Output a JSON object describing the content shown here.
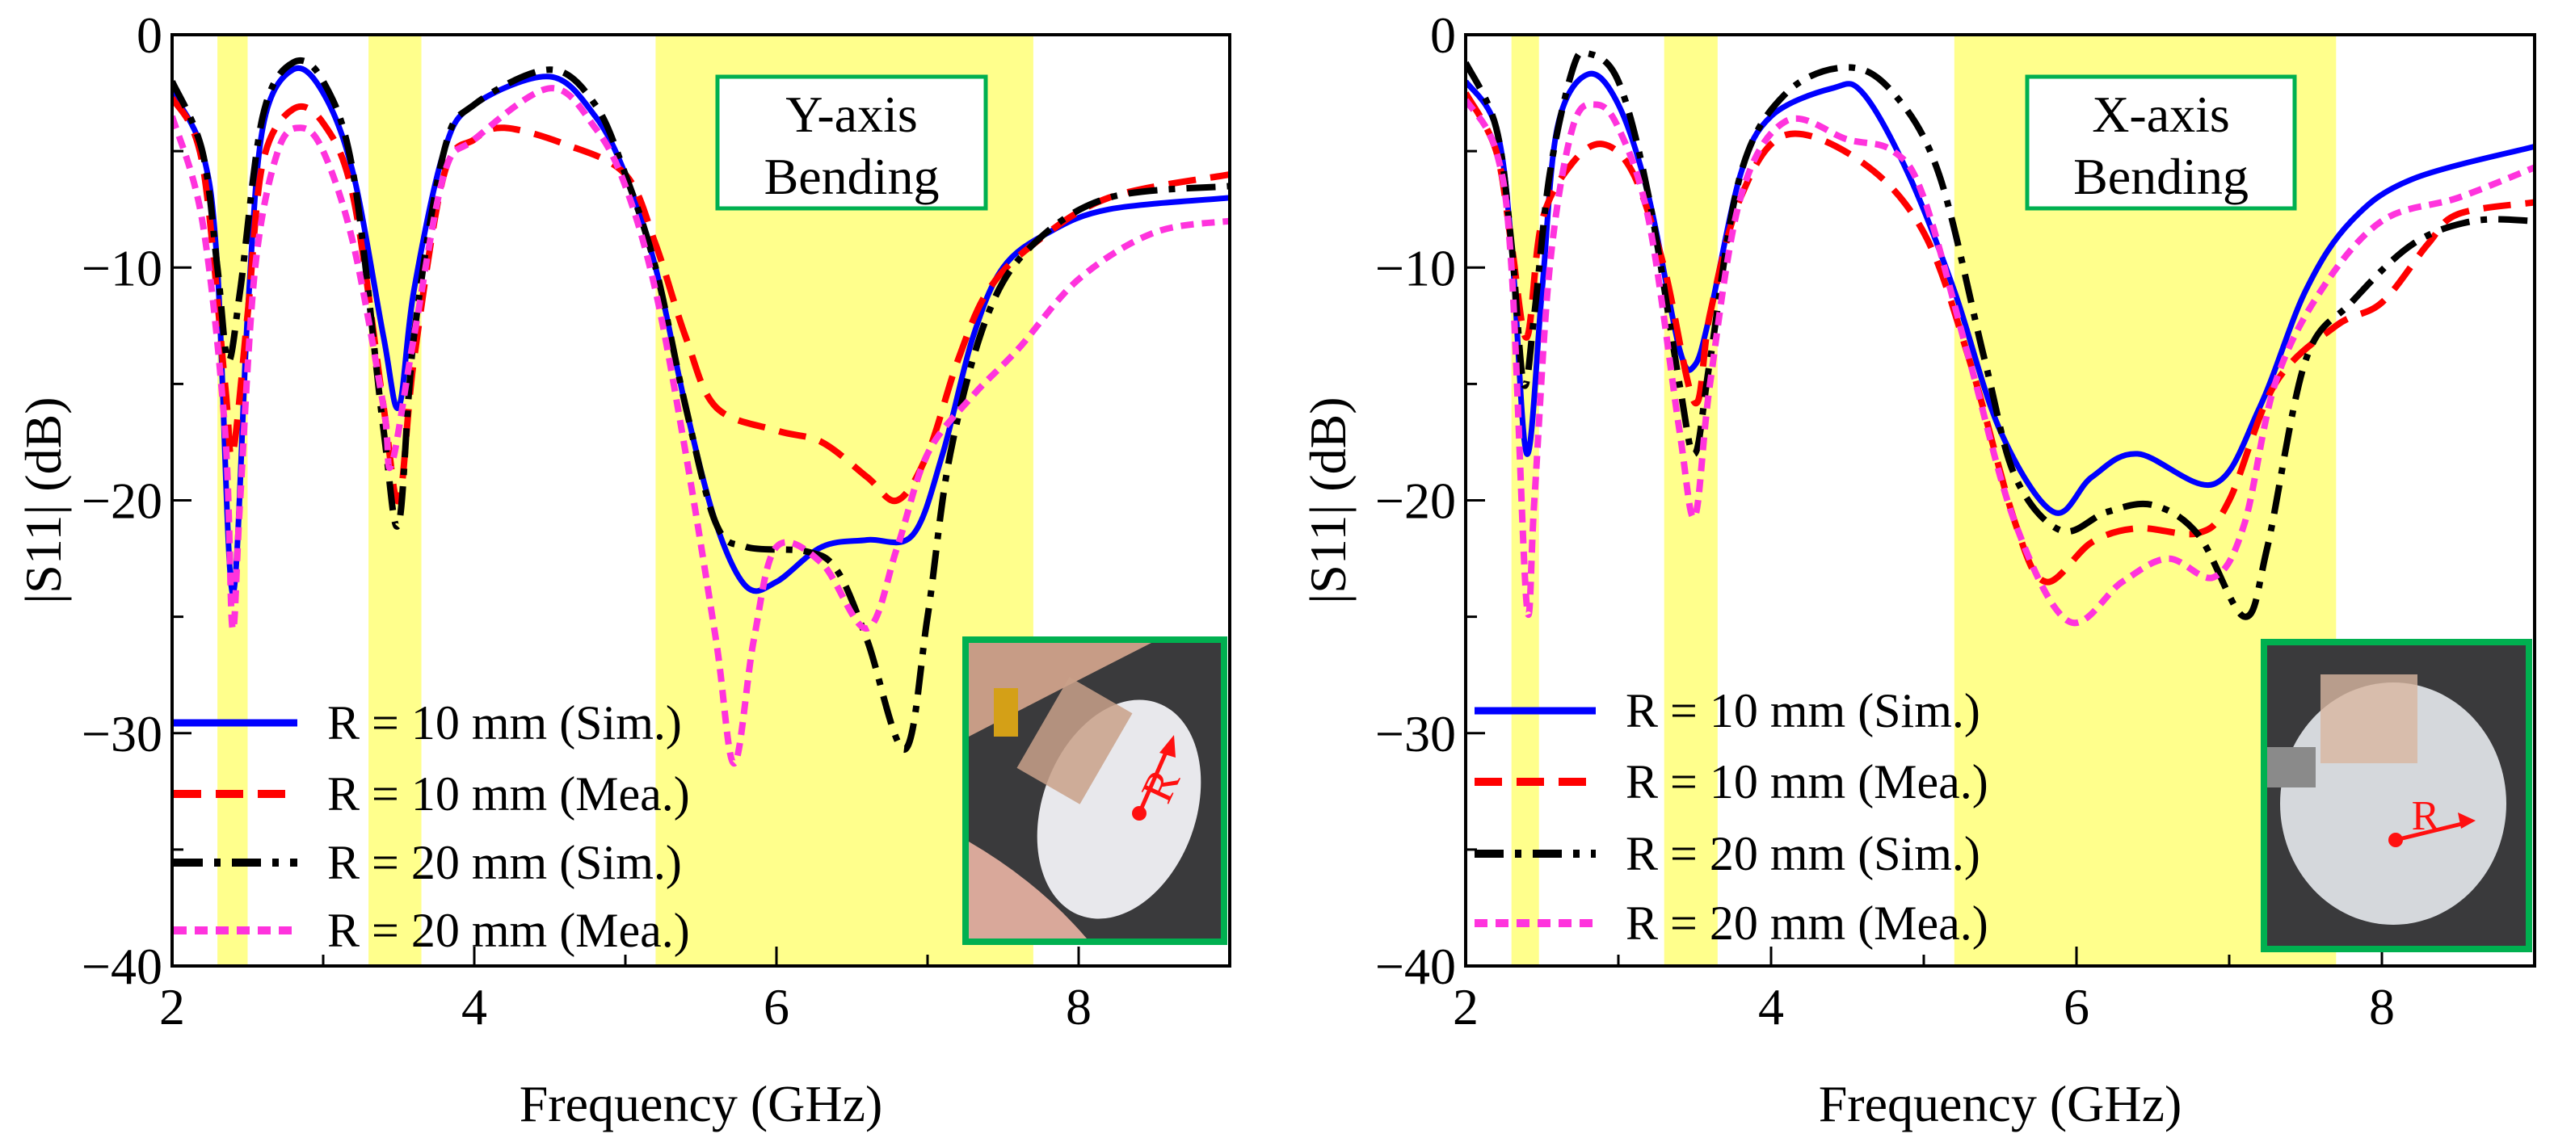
{
  "chart_data": [
    {
      "type": "line",
      "annotation": [
        "Y-axis",
        "Bending"
      ],
      "xlabel": "Frequency (GHz)",
      "ylabel": "|S11| (dB)",
      "ylabel_main": "|S",
      "ylabel_sub": "11",
      "ylabel_tail": "| (dB)",
      "xlim": [
        2,
        9
      ],
      "ylim": [
        -40,
        0
      ],
      "xticks": [
        2,
        4,
        6,
        8
      ],
      "yticks": [
        0,
        -10,
        -20,
        -30,
        -40
      ],
      "xtick_labels": [
        "2",
        "4",
        "6",
        "8"
      ],
      "ytick_labels": [
        "0",
        "−10",
        "−20",
        "−30",
        "−40"
      ],
      "highlight_bands_ghz": [
        [
          2.3,
          2.5
        ],
        [
          3.3,
          3.65
        ],
        [
          5.2,
          7.7
        ]
      ],
      "legend_position": "bottom-left",
      "inset_label": "R",
      "series": [
        {
          "name": "R = 10 mm (Sim.)",
          "color": "#0000ff",
          "style": "solid",
          "x": [
            2.0,
            2.2,
            2.3,
            2.4,
            2.5,
            2.6,
            2.8,
            3.0,
            3.2,
            3.4,
            3.5,
            3.6,
            3.8,
            4.0,
            4.5,
            4.8,
            5.0,
            5.2,
            5.4,
            5.6,
            5.8,
            6.0,
            6.3,
            6.6,
            6.9,
            7.1,
            7.3,
            7.5,
            7.8,
            8.2,
            9.0
          ],
          "y": [
            -2.5,
            -5,
            -10,
            -24,
            -12,
            -4,
            -1.5,
            -2.5,
            -6,
            -13,
            -16,
            -11,
            -5,
            -3,
            -1.8,
            -3.5,
            -6,
            -10,
            -16,
            -21,
            -23.7,
            -23.5,
            -22,
            -21.7,
            -21.5,
            -18,
            -13,
            -10,
            -8.5,
            -7.5,
            -7
          ]
        },
        {
          "name": "R = 10 mm (Mea.)",
          "color": "#ff0000",
          "style": "dashed",
          "x": [
            2.0,
            2.2,
            2.35,
            2.4,
            2.5,
            2.6,
            2.8,
            3.0,
            3.2,
            3.4,
            3.5,
            3.6,
            3.8,
            4.0,
            4.2,
            4.6,
            5.0,
            5.2,
            5.4,
            5.6,
            6.0,
            6.3,
            6.6,
            6.8,
            7.0,
            7.2,
            7.4,
            7.7,
            8.2,
            9.0
          ],
          "y": [
            -2.7,
            -5.5,
            -15,
            -18,
            -12,
            -5.5,
            -3.2,
            -3.8,
            -7,
            -16,
            -20,
            -14,
            -6,
            -4.5,
            -4,
            -4.7,
            -6,
            -9,
            -13,
            -16,
            -17,
            -17.5,
            -19,
            -20,
            -18,
            -14,
            -11,
            -9,
            -7,
            -6
          ]
        },
        {
          "name": "R = 20 mm (Sim.)",
          "color": "#000000",
          "style": "dashdot",
          "x": [
            2.0,
            2.2,
            2.3,
            2.37,
            2.45,
            2.6,
            2.8,
            3.0,
            3.2,
            3.4,
            3.5,
            3.6,
            3.8,
            4.0,
            4.5,
            4.8,
            5.0,
            5.2,
            5.4,
            5.6,
            5.8,
            6.2,
            6.4,
            6.6,
            6.85,
            7.0,
            7.15,
            7.4,
            7.7,
            8.2,
            9.0
          ],
          "y": [
            -2,
            -5,
            -10,
            -14,
            -11,
            -3.5,
            -1.2,
            -2,
            -6,
            -17,
            -21,
            -13,
            -5,
            -3,
            -1.5,
            -3,
            -6,
            -10,
            -16,
            -21,
            -22,
            -22.2,
            -23,
            -26,
            -30.7,
            -25,
            -18,
            -12,
            -9,
            -7,
            -6.5
          ]
        },
        {
          "name": "R = 20 mm (Mea.)",
          "color": "#ff33dd",
          "style": "dotted",
          "x": [
            2.0,
            2.2,
            2.35,
            2.4,
            2.45,
            2.55,
            2.7,
            2.85,
            3.0,
            3.2,
            3.4,
            3.45,
            3.6,
            3.8,
            4.0,
            4.5,
            4.8,
            5.0,
            5.2,
            5.4,
            5.6,
            5.72,
            5.85,
            6.0,
            6.3,
            6.6,
            6.8,
            7.0,
            7.3,
            7.6,
            8.0,
            8.5,
            9.0
          ],
          "y": [
            -3.5,
            -8,
            -17,
            -25.5,
            -20,
            -10,
            -5,
            -4,
            -5,
            -9,
            -16,
            -18.5,
            -13,
            -6,
            -4.5,
            -2.3,
            -4,
            -6.5,
            -11,
            -18,
            -26,
            -31.3,
            -26,
            -22,
            -22.7,
            -25.5,
            -22,
            -18,
            -15.5,
            -13.5,
            -10.5,
            -8.5,
            -8
          ]
        }
      ]
    },
    {
      "type": "line",
      "annotation": [
        "X-axis",
        "Bending"
      ],
      "xlabel": "Frequency (GHz)",
      "ylabel": "|S11| (dB)",
      "ylabel_main": "|S",
      "ylabel_sub": "11",
      "ylabel_tail": "| (dB)",
      "xlim": [
        2,
        9
      ],
      "ylim": [
        -40,
        0
      ],
      "xticks": [
        2,
        4,
        6,
        8
      ],
      "yticks": [
        0,
        -10,
        -20,
        -30,
        -40
      ],
      "xtick_labels": [
        "2",
        "4",
        "6",
        "8"
      ],
      "ytick_labels": [
        "0",
        "−10",
        "−20",
        "−30",
        "−40"
      ],
      "highlight_bands_ghz": [
        [
          2.3,
          2.48
        ],
        [
          3.3,
          3.65
        ],
        [
          5.2,
          7.7
        ]
      ],
      "legend_position": "bottom-left",
      "inset_label": "R",
      "series": [
        {
          "name": "R = 10 mm (Sim.)",
          "color": "#0000ff",
          "style": "solid",
          "x": [
            2.0,
            2.2,
            2.3,
            2.4,
            2.5,
            2.6,
            2.8,
            3.0,
            3.2,
            3.4,
            3.5,
            3.6,
            3.8,
            4.0,
            4.4,
            4.6,
            4.9,
            5.2,
            5.5,
            5.85,
            6.1,
            6.4,
            6.9,
            7.2,
            7.5,
            7.8,
            8.2,
            9.0
          ],
          "y": [
            -2,
            -4,
            -9,
            -18,
            -11,
            -4,
            -1.7,
            -3,
            -7,
            -13.5,
            -14.2,
            -12,
            -6,
            -3.5,
            -2.3,
            -2.5,
            -6,
            -11,
            -17,
            -20.5,
            -19,
            -18,
            -19.3,
            -16,
            -11,
            -8,
            -6.2,
            -4.8
          ]
        },
        {
          "name": "R = 10 mm (Mea.)",
          "color": "#ff0000",
          "style": "dashed",
          "x": [
            2.0,
            2.2,
            2.3,
            2.4,
            2.5,
            2.7,
            2.9,
            3.1,
            3.3,
            3.5,
            3.6,
            3.8,
            4.1,
            4.6,
            5.0,
            5.3,
            5.6,
            5.8,
            6.1,
            6.4,
            6.8,
            7.0,
            7.3,
            7.7,
            8.0,
            8.3,
            8.5,
            9.0
          ],
          "y": [
            -2.5,
            -5,
            -9,
            -13,
            -8,
            -5.5,
            -4.7,
            -6,
            -10,
            -15.8,
            -12,
            -7,
            -4.3,
            -5.5,
            -8.5,
            -14,
            -21,
            -23.5,
            -21.8,
            -21.2,
            -21.4,
            -20,
            -15,
            -12.5,
            -11.5,
            -9,
            -7.7,
            -7.2
          ]
        },
        {
          "name": "R = 20 mm (Sim.)",
          "color": "#000000",
          "style": "dashdot",
          "x": [
            2.0,
            2.2,
            2.3,
            2.38,
            2.45,
            2.55,
            2.7,
            2.8,
            3.0,
            3.2,
            3.4,
            3.5,
            3.6,
            3.8,
            4.1,
            4.5,
            4.8,
            5.1,
            5.4,
            5.6,
            5.9,
            6.2,
            6.5,
            6.8,
            7.1,
            7.25,
            7.5,
            7.8,
            8.2,
            8.6,
            9.0
          ],
          "y": [
            -1.2,
            -4,
            -9,
            -15,
            -12,
            -6,
            -1.5,
            -0.8,
            -2,
            -7,
            -15,
            -18,
            -14,
            -6,
            -2.5,
            -1.4,
            -2.5,
            -6,
            -14,
            -19,
            -21.3,
            -20.5,
            -20.2,
            -21.5,
            -25,
            -22,
            -14,
            -11.5,
            -9,
            -8,
            -8
          ]
        },
        {
          "name": "R = 20 mm (Mea.)",
          "color": "#ff33dd",
          "style": "dotted",
          "x": [
            2.0,
            2.2,
            2.3,
            2.4,
            2.45,
            2.55,
            2.7,
            2.85,
            3.0,
            3.2,
            3.4,
            3.5,
            3.6,
            3.8,
            4.1,
            4.5,
            4.8,
            5.0,
            5.3,
            5.6,
            5.95,
            6.3,
            6.6,
            6.9,
            7.1,
            7.3,
            7.6,
            8.0,
            8.5,
            9.0
          ],
          "y": [
            -2.8,
            -5,
            -10,
            -24.5,
            -20,
            -10,
            -4,
            -3,
            -4,
            -8,
            -17,
            -20.7,
            -15,
            -7,
            -3.7,
            -4.5,
            -5,
            -7,
            -14,
            -21,
            -25.2,
            -23.5,
            -22.5,
            -23.3,
            -21,
            -15,
            -11,
            -8,
            -7,
            -5.7
          ]
        }
      ]
    }
  ]
}
